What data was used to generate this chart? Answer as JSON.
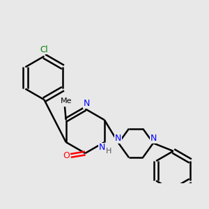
{
  "background_color": "#e8e8e8",
  "bond_color": "#000000",
  "bond_width": 1.8,
  "atom_colors": {
    "C": "#000000",
    "N": "#0000ff",
    "O": "#ff0000",
    "Cl": "#008000",
    "H": "#555555"
  },
  "figsize": [
    3.0,
    3.0
  ],
  "dpi": 100
}
